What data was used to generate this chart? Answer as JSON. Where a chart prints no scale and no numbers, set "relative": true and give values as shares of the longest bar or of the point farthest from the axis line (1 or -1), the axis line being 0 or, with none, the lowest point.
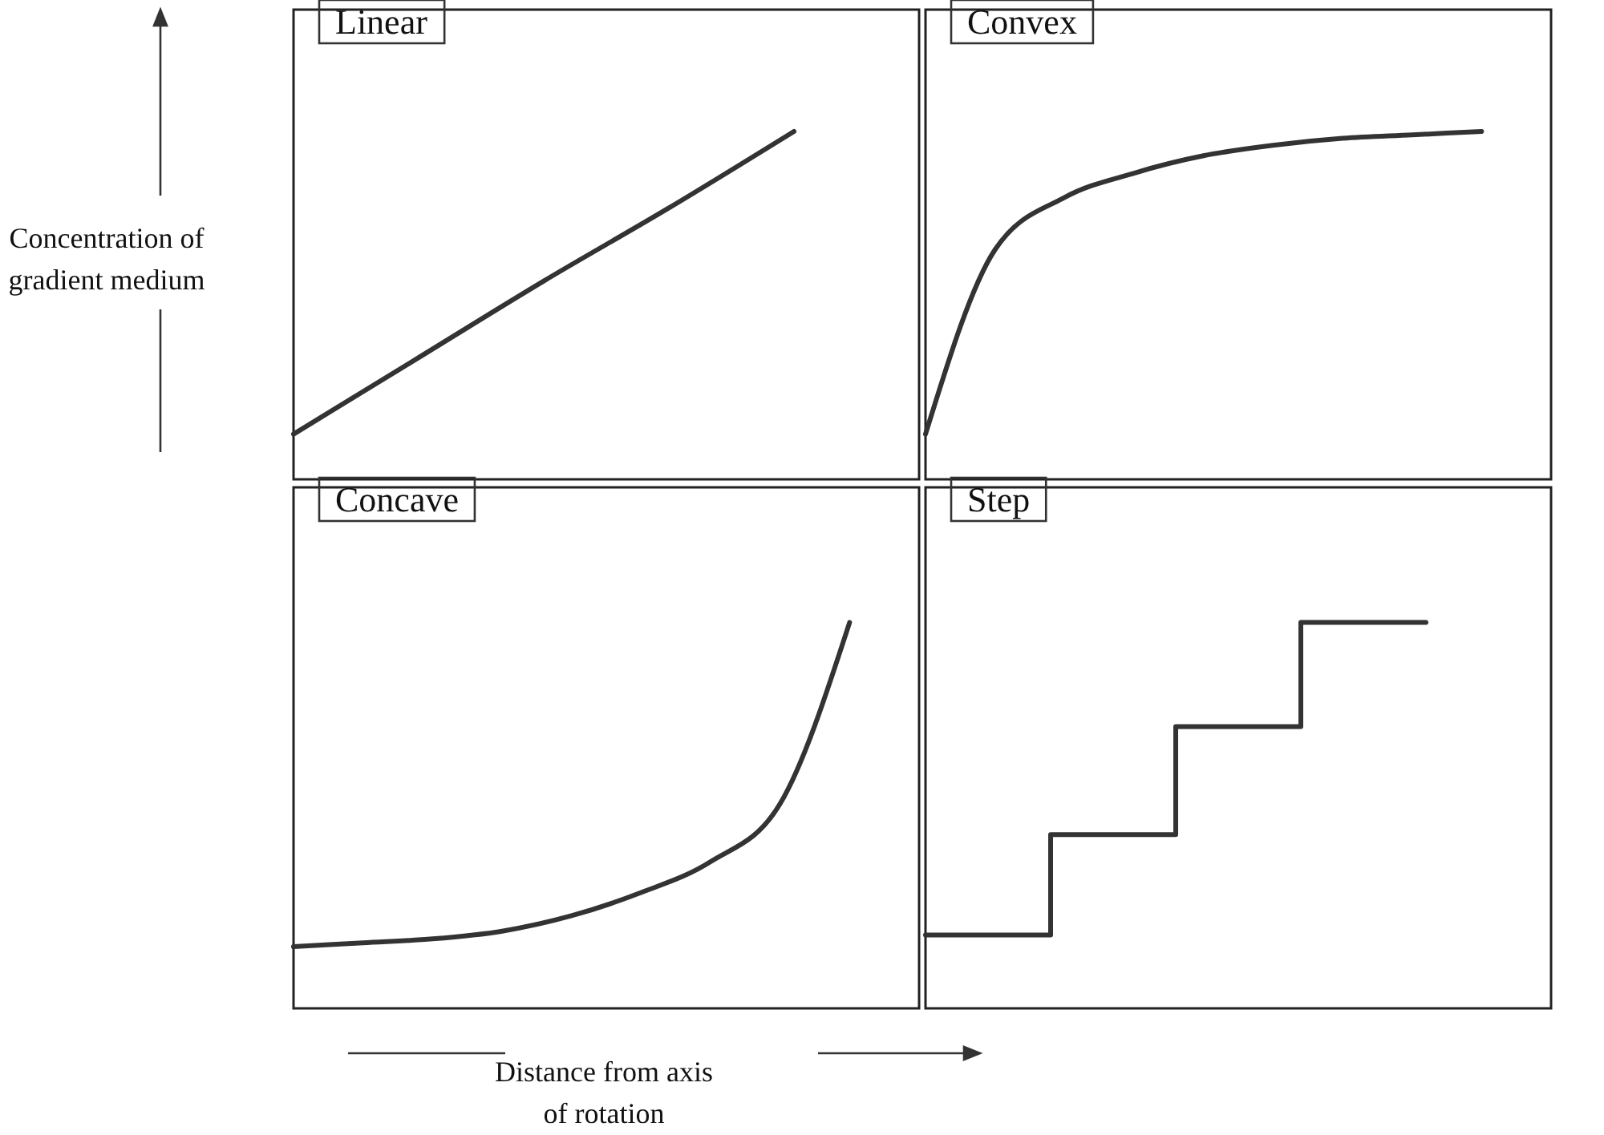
{
  "chart_data": [
    {
      "type": "line",
      "title": "Linear",
      "ylabel": "Concentration of gradient medium",
      "relative": true,
      "tick_labels": false,
      "color": "#333333",
      "categories": [
        null,
        null,
        null,
        null,
        null,
        null
      ],
      "values": [
        0.13,
        0.35,
        0.57,
        0.78,
        1,
        null
      ]
    },
    {
      "type": "line",
      "title": "Convex",
      "relative": true,
      "tick_labels": false,
      "color": "#333333",
      "categories": [
        null,
        null,
        null,
        null,
        null,
        null,
        null,
        null,
        null,
        null
      ],
      "values": [
        0.13,
        0.66,
        0.81,
        0.88,
        0.93,
        0.96,
        0.98,
        0.99,
        1,
        null
      ]
    },
    {
      "type": "line",
      "title": "Concave",
      "xlabel": "Distance from axis of rotation",
      "relative": true,
      "tick_labels": false,
      "color": "#333333",
      "categories": [
        null,
        null,
        null,
        null,
        null,
        null,
        null,
        null,
        null,
        null
      ],
      "values": [
        0.16,
        0.17,
        0.18,
        0.2,
        0.24,
        0.3,
        0.38,
        0.53,
        1,
        null
      ]
    },
    {
      "type": "step",
      "title": "Step",
      "relative": true,
      "tick_labels": false,
      "color": "#333333",
      "categories": [
        null,
        null,
        null,
        null,
        null,
        null
      ],
      "values": [
        0.19,
        0.45,
        0.73,
        1,
        1,
        null
      ]
    }
  ]
}
